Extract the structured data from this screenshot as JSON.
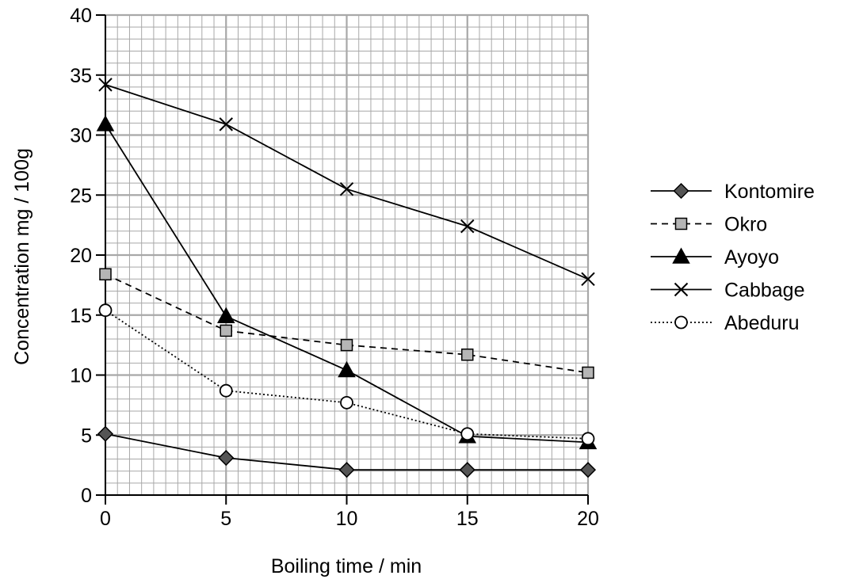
{
  "chart_data": {
    "type": "line",
    "title": "",
    "xlabel": "Boiling time / min",
    "ylabel": "Concentration mg / 100g",
    "xlim": [
      0,
      20
    ],
    "ylim": [
      0,
      40
    ],
    "x_ticks": [
      0,
      5,
      10,
      15,
      20
    ],
    "y_ticks": [
      0,
      5,
      10,
      15,
      20,
      25,
      30,
      35,
      40
    ],
    "x_tick_labels": [
      "0",
      "5",
      "10",
      "15",
      "20"
    ],
    "y_tick_labels": [
      "0",
      "5",
      "10",
      "15",
      "20",
      "25",
      "30",
      "35",
      "40"
    ],
    "grid": true,
    "legend_position": "right",
    "x": [
      0,
      5,
      10,
      15,
      20
    ],
    "series": [
      {
        "name": "Kontomire",
        "values": [
          5.1,
          3.1,
          2.1,
          2.1,
          2.1
        ],
        "marker": "diamond",
        "line": "solid",
        "marker_fill": "#555555"
      },
      {
        "name": "Okro",
        "values": [
          18.4,
          13.7,
          12.5,
          11.7,
          10.2
        ],
        "marker": "square",
        "line": "dashed",
        "marker_fill": "#b5b5b5"
      },
      {
        "name": "Ayoyo",
        "values": [
          30.9,
          14.9,
          10.4,
          4.9,
          4.4
        ],
        "marker": "triangle",
        "line": "solid",
        "marker_fill": "#000000"
      },
      {
        "name": "Cabbage",
        "values": [
          34.2,
          30.9,
          25.5,
          22.4,
          18.0
        ],
        "marker": "cross",
        "line": "solid",
        "marker_fill": "none"
      },
      {
        "name": "Abeduru",
        "values": [
          15.4,
          8.7,
          7.7,
          5.1,
          4.7
        ],
        "marker": "circle",
        "line": "dotted",
        "marker_fill": "#ffffff"
      }
    ]
  }
}
